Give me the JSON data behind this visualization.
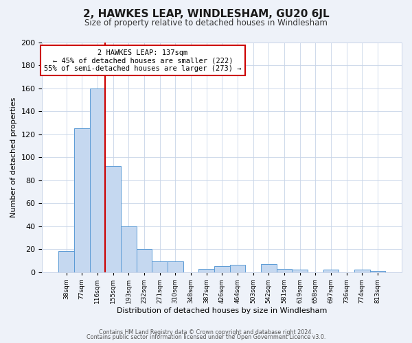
{
  "title": "2, HAWKES LEAP, WINDLESHAM, GU20 6JL",
  "subtitle": "Size of property relative to detached houses in Windlesham",
  "xlabel": "Distribution of detached houses by size in Windlesham",
  "ylabel": "Number of detached properties",
  "bar_labels": [
    "38sqm",
    "77sqm",
    "116sqm",
    "155sqm",
    "193sqm",
    "232sqm",
    "271sqm",
    "310sqm",
    "348sqm",
    "387sqm",
    "426sqm",
    "464sqm",
    "503sqm",
    "542sqm",
    "581sqm",
    "619sqm",
    "658sqm",
    "697sqm",
    "736sqm",
    "774sqm",
    "813sqm"
  ],
  "bar_values": [
    18,
    125,
    160,
    92,
    40,
    20,
    9,
    9,
    0,
    3,
    5,
    6,
    0,
    7,
    3,
    2,
    0,
    2,
    0,
    2,
    1
  ],
  "bar_color": "#c5d8f0",
  "bar_edge_color": "#5b9bd5",
  "vline_color": "#cc0000",
  "vline_pos": 2.5,
  "annotation_title": "2 HAWKES LEAP: 137sqm",
  "annotation_line1": "← 45% of detached houses are smaller (222)",
  "annotation_line2": "55% of semi-detached houses are larger (273) →",
  "annotation_box_color": "#ffffff",
  "annotation_box_edge": "#cc0000",
  "ylim": [
    0,
    200
  ],
  "yticks": [
    0,
    20,
    40,
    60,
    80,
    100,
    120,
    140,
    160,
    180,
    200
  ],
  "footer1": "Contains HM Land Registry data © Crown copyright and database right 2024.",
  "footer2": "Contains public sector information licensed under the Open Government Licence v3.0.",
  "bg_color": "#eef2f9",
  "plot_bg_color": "#ffffff",
  "grid_color": "#c8d4e8"
}
